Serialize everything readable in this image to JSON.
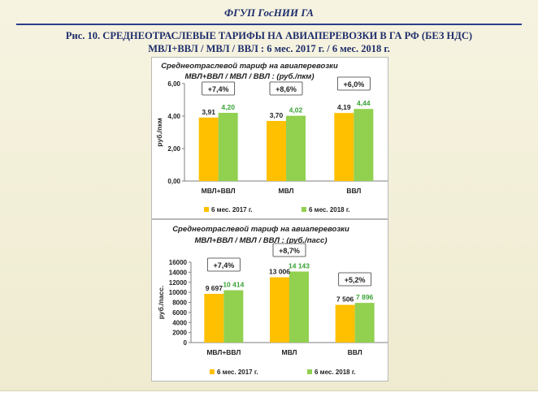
{
  "header": {
    "org": "ФГУП ГосНИИ ГА"
  },
  "figure": {
    "title_line1": "Рис. 10. СРЕДНЕОТРАСЛЕВЫЕ   ТАРИФЫ НА АВИАПЕРЕВОЗКИ   В ГА РФ (БЕЗ НДС)",
    "title_line2": "МВЛ+ВВЛ / МВЛ / ВВЛ :   6 мес. 2017 г. / 6 мес. 2018 г."
  },
  "colors": {
    "series_2017": "#ffc000",
    "series_2018": "#92d050",
    "label_2018": "#3aa335",
    "text": "#1f1f1f",
    "accent_title": "#1f2e6b"
  },
  "chart_data": [
    {
      "type": "bar",
      "title_line1": "Среднеотраслевой тариф на авиаперевозки",
      "title_line2": "МВЛ+ВВЛ / МВЛ / ВВЛ : (руб./пкм)",
      "ylabel": "руб./пкм",
      "xlabel": "",
      "ylim": [
        0,
        6
      ],
      "yticks": [
        "0,00",
        "2,00",
        "4,00",
        "6,00"
      ],
      "ytick_values": [
        0,
        2,
        4,
        6
      ],
      "categories": [
        "МВЛ+ВВЛ",
        "МВЛ",
        "ВВЛ"
      ],
      "series": [
        {
          "name": "6 мес. 2017 г.",
          "values": [
            3.91,
            3.7,
            4.19
          ],
          "labels": [
            "3,91",
            "3,70",
            "4,19"
          ]
        },
        {
          "name": "6 мес. 2018 г.",
          "values": [
            4.2,
            4.02,
            4.44
          ],
          "labels": [
            "4,20",
            "4,02",
            "4,44"
          ]
        }
      ],
      "growth": [
        "+7,4%",
        "+8,6%",
        "+6,0%"
      ],
      "grid": false,
      "legend": "bottom"
    },
    {
      "type": "bar",
      "title_line1": "Среднеотраслевой тариф на авиаперевозки",
      "title_line2": "МВЛ+ВВЛ / МВЛ / ВВЛ : (руб./пасс)",
      "ylabel": "руб./пасс.",
      "xlabel": "",
      "ylim": [
        0,
        16000
      ],
      "yticks": [
        "0",
        "2000",
        "4000",
        "6000",
        "8000",
        "10000",
        "12000",
        "14000",
        "16000"
      ],
      "ytick_values": [
        0,
        2000,
        4000,
        6000,
        8000,
        10000,
        12000,
        14000,
        16000
      ],
      "categories": [
        "МВЛ+ВВЛ",
        "МВЛ",
        "ВВЛ"
      ],
      "series": [
        {
          "name": "6 мес. 2017 г.",
          "values": [
            9697,
            13006,
            7506
          ],
          "labels": [
            "9 697",
            "13 006",
            "7 506"
          ]
        },
        {
          "name": "6 мес. 2018 г.",
          "values": [
            10414,
            14143,
            7896
          ],
          "labels": [
            "10 414",
            "14 143",
            "7 896"
          ]
        }
      ],
      "growth": [
        "+7,4%",
        "+8,7%",
        "+5,2%"
      ],
      "grid": false,
      "legend": "bottom"
    }
  ]
}
